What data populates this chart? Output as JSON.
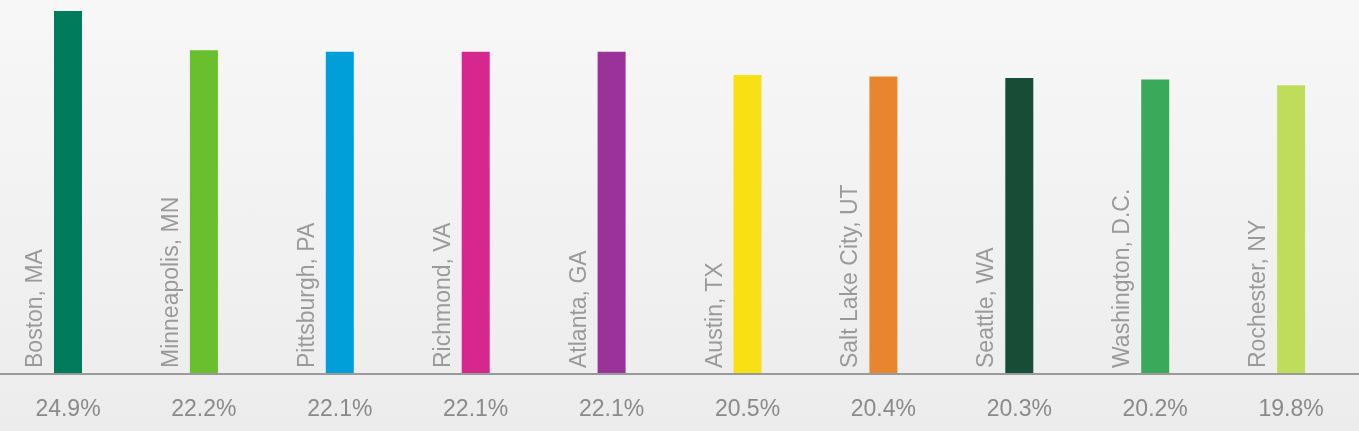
{
  "chart_data": {
    "type": "bar",
    "categories": [
      "Boston, MA",
      "Minneapolis, MN",
      "Pittsburgh, PA",
      "Richmond, VA",
      "Atlanta, GA",
      "Austin, TX",
      "Salt Lake City, UT",
      "Seattle, WA",
      "Washington, D.C.",
      "Rochester, NY"
    ],
    "values": [
      24.9,
      22.2,
      22.1,
      22.1,
      22.1,
      20.5,
      20.4,
      20.3,
      20.2,
      19.8
    ],
    "colors": [
      "#007c5c",
      "#6abf2e",
      "#009fd9",
      "#d6278f",
      "#993399",
      "#f7e014",
      "#e9852c",
      "#174c36",
      "#3aaa5a",
      "#bfdc5a"
    ],
    "value_labels": [
      "24.9%",
      "22.2%",
      "22.1%",
      "22.1%",
      "22.1%",
      "20.5%",
      "20.4%",
      "20.3%",
      "20.2%",
      "19.8%"
    ]
  }
}
